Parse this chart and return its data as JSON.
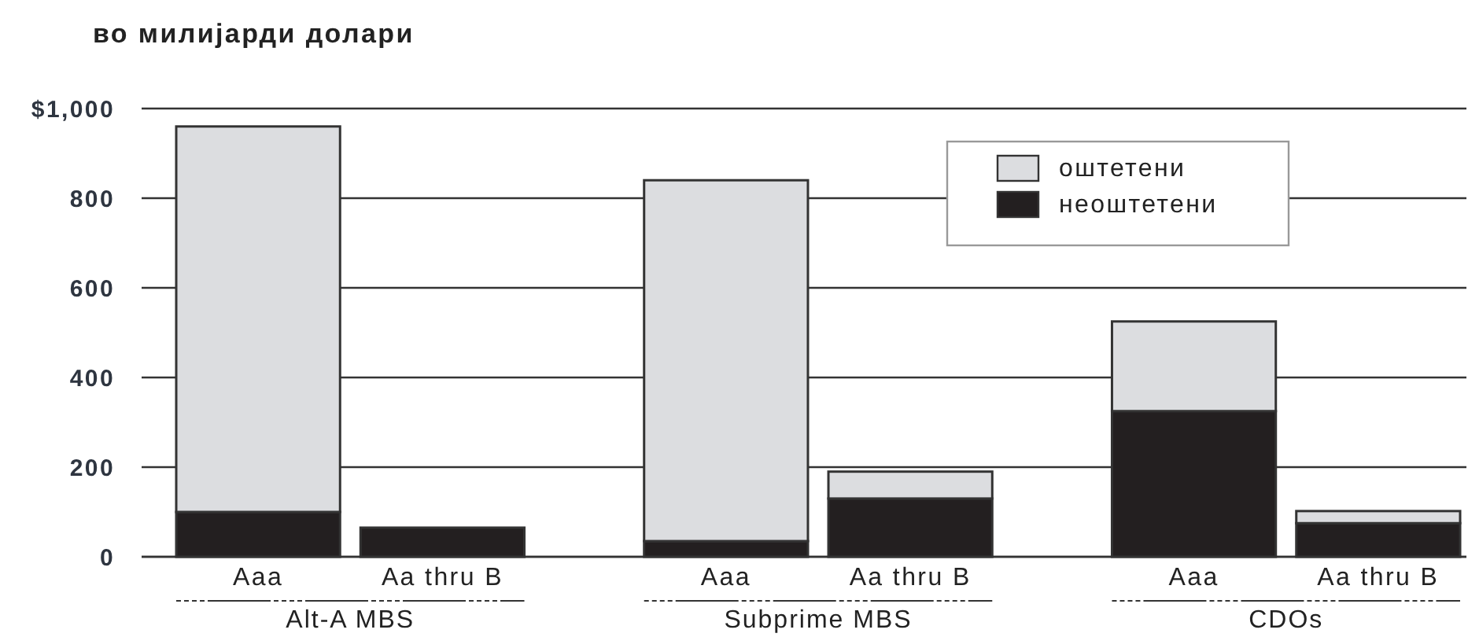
{
  "chart_data": {
    "type": "bar",
    "ylabel": "во милијарди долари",
    "categories": [
      "Aaa",
      "Aa thru B",
      "Aaa",
      "Aa thru B",
      "Aaa",
      "Aa thru B"
    ],
    "series": [
      {
        "name": "неоштетени",
        "color": "#231f20",
        "values": [
          100,
          65,
          35,
          130,
          325,
          75
        ]
      },
      {
        "name": "оштетени",
        "color": "#dcdde0",
        "values": [
          860,
          null,
          805,
          60,
          200,
          27
        ]
      }
    ],
    "stacked": true,
    "ylim": [
      0,
      1000
    ],
    "yticks": [
      0,
      200,
      400,
      600,
      800,
      {
        "value": 1000,
        "label": "$1,000"
      }
    ],
    "grid": "y",
    "legend": "top right",
    "annotations": [
      "Alt-A MBS",
      "Subprime MBS",
      "CDOs"
    ]
  }
}
